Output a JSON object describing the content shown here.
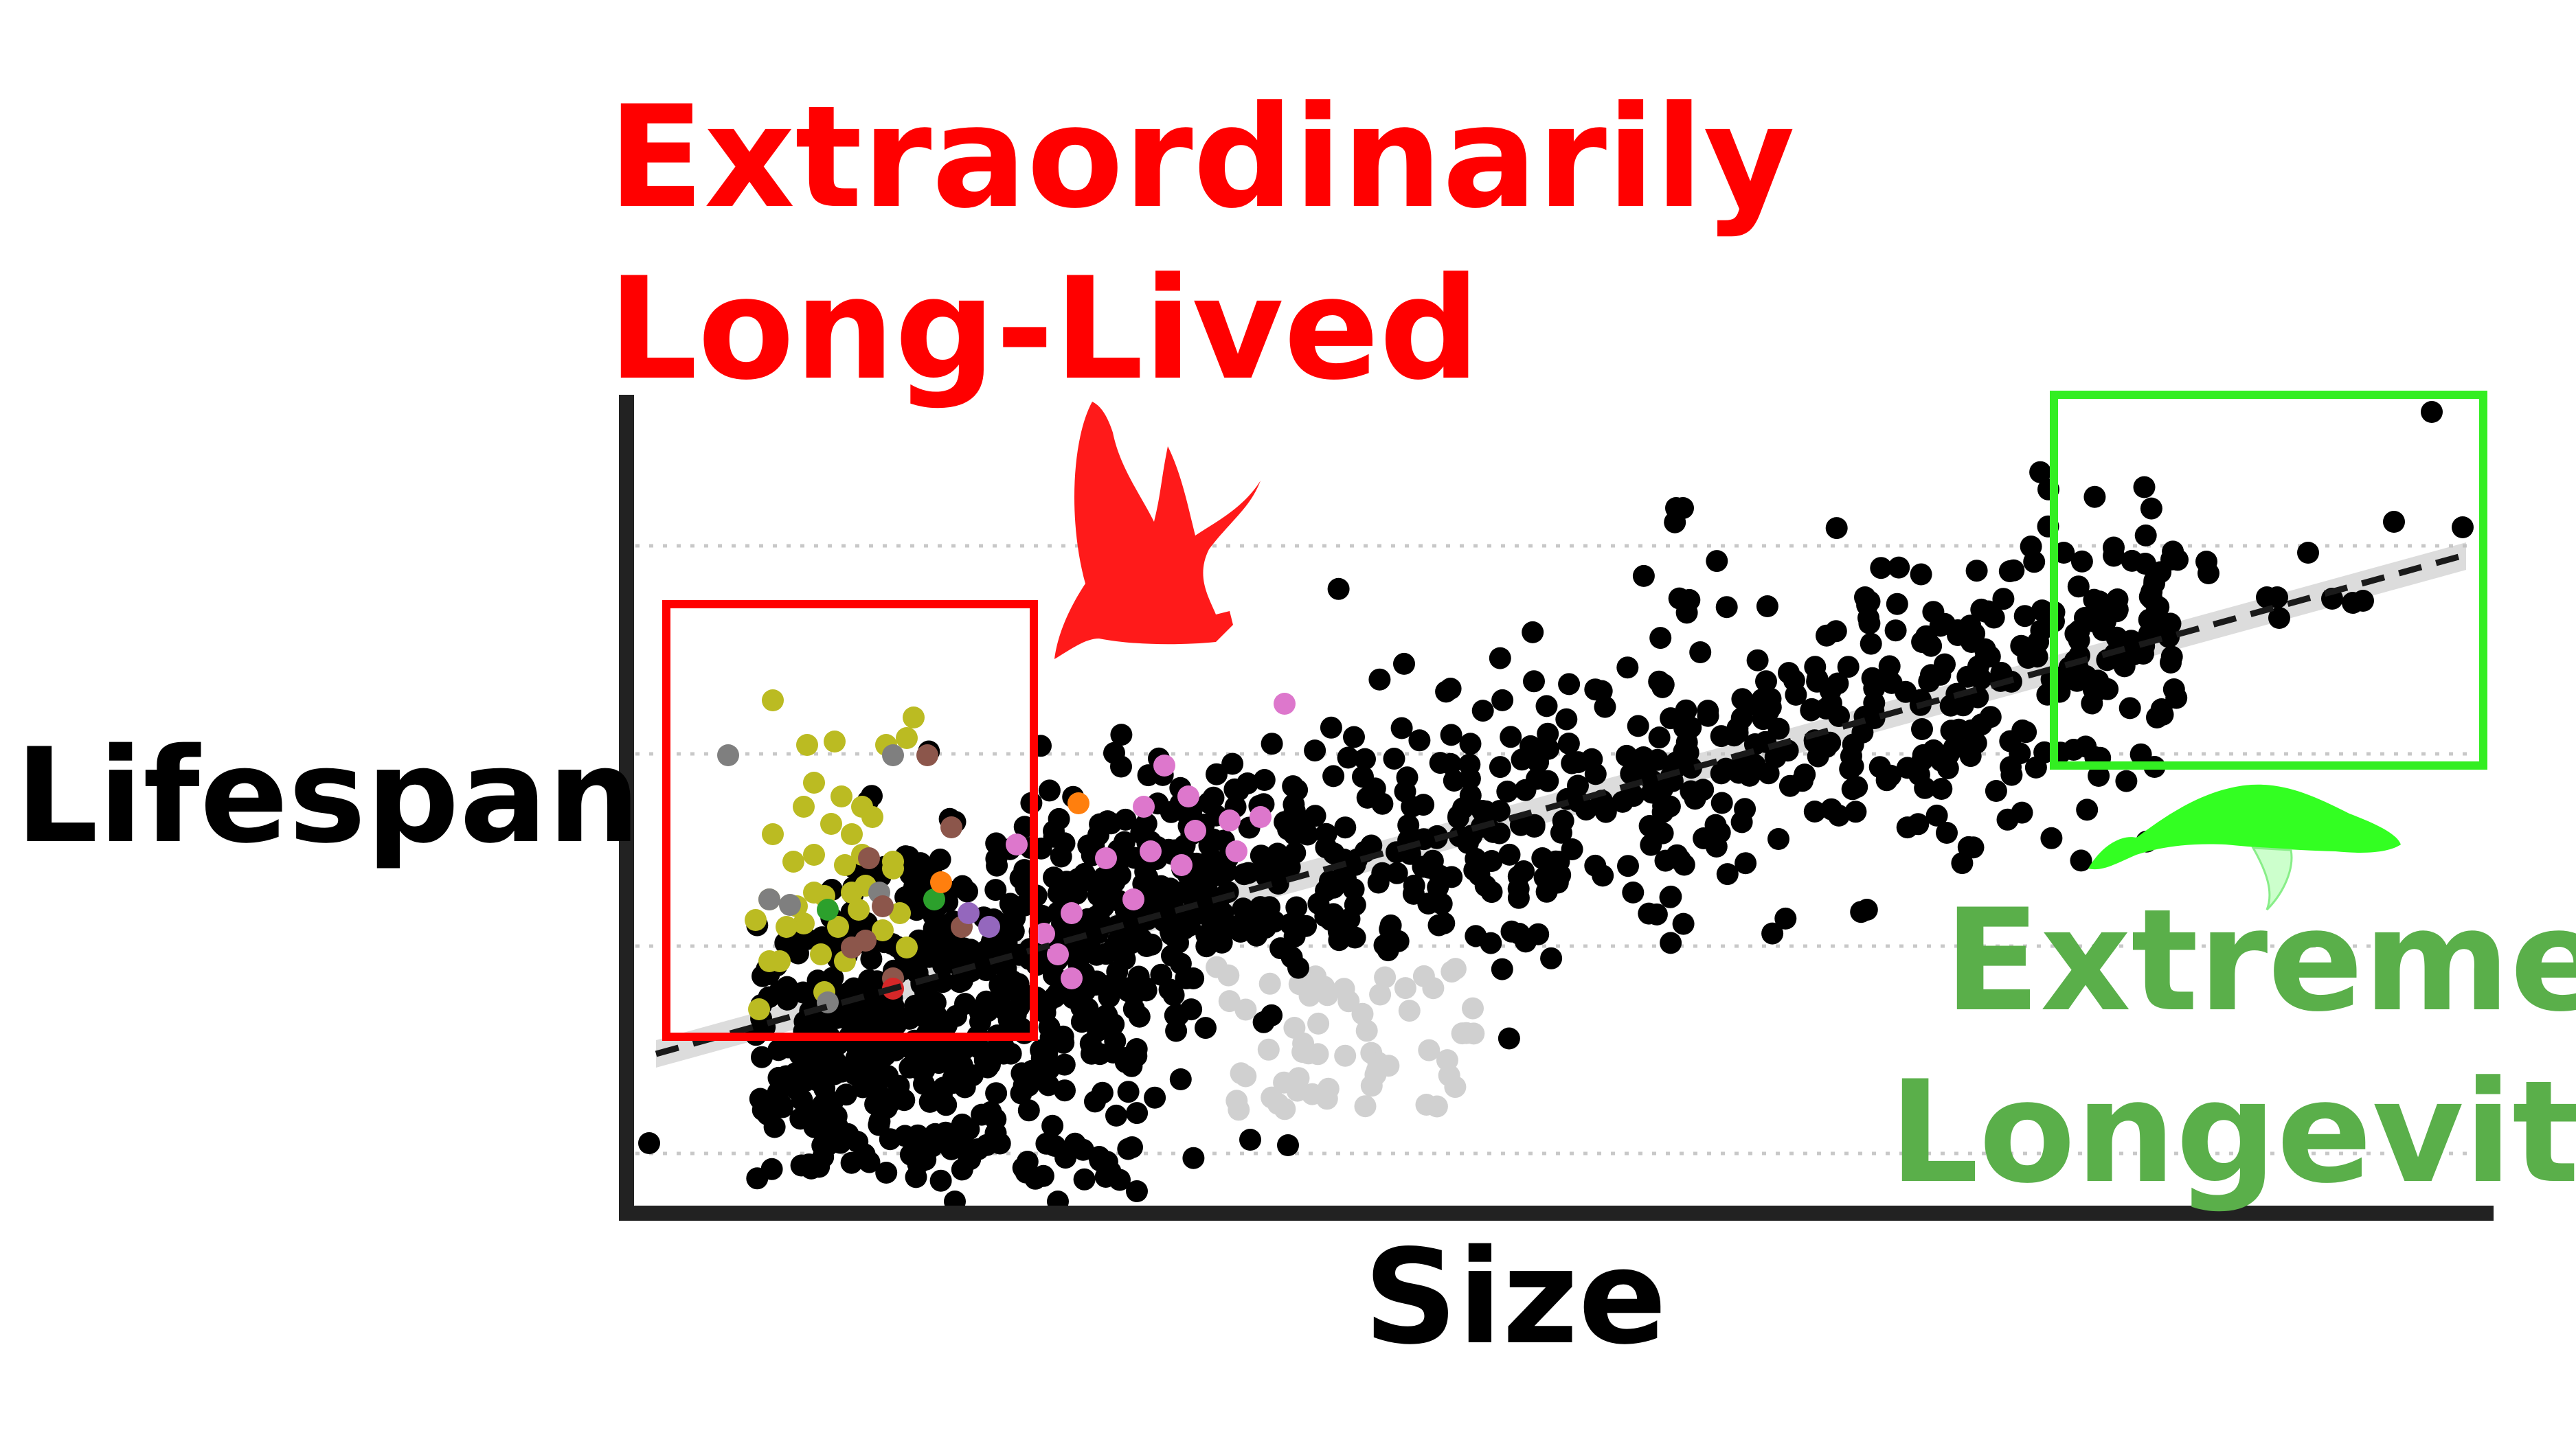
{
  "chart_data": {
    "type": "scatter",
    "xlabel": "Size",
    "ylabel": "Lifespan",
    "grid": true,
    "axis_ticks": false,
    "trend_line": {
      "style": "dashed",
      "color": "#1a1a1a",
      "confidence_band": true
    },
    "annotations": [
      {
        "text": "Extraordinarily\nLong-Lived",
        "color": "#ff0000",
        "lines": [
          "Extraordinarily",
          "Long-Lived"
        ],
        "box_color": "#ff0000",
        "icon": "bat-icon",
        "region": "small size, above trend"
      },
      {
        "text": "Extreme\nLongevity",
        "color": "#5aaf4a",
        "lines": [
          "Extreme",
          "Longevity"
        ],
        "box_color": "#33ee22",
        "icon": "whale-icon",
        "region": "large size, top"
      }
    ],
    "colors": {
      "default": "#000000",
      "dimmed": "#d0d0d0",
      "highlight_olive": "#bbbb22",
      "highlight_pink": "#dd77cc",
      "highlight_brown": "#8c564b",
      "highlight_gray": "#7f7f7f",
      "highlight_green": "#2ca02c",
      "highlight_orange": "#ff7f0e",
      "highlight_purple": "#9467bd",
      "highlight_red": "#d62728"
    }
  }
}
